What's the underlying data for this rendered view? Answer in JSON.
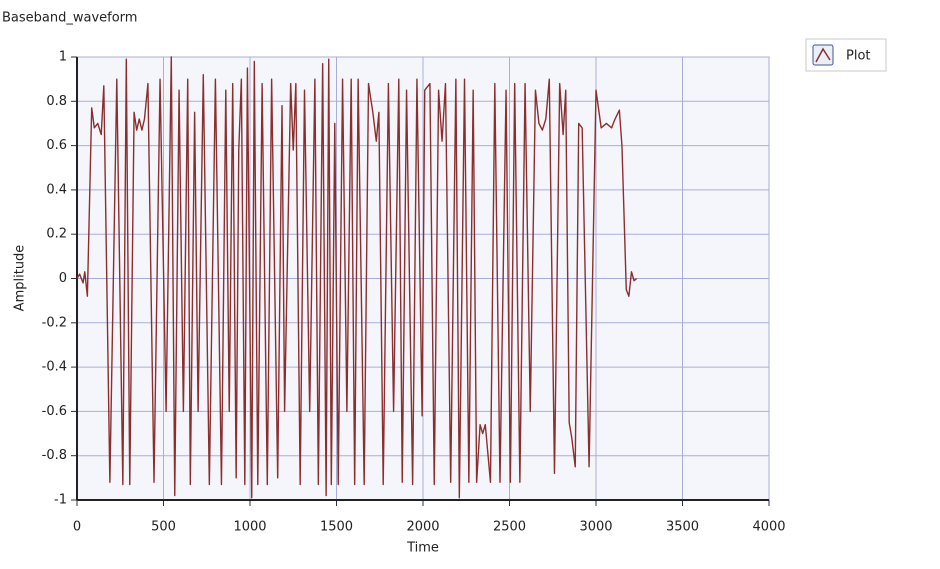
{
  "chart_data": {
    "type": "line",
    "title": "Baseband_waveform",
    "x_label": "Time",
    "y_label": "Amplitude",
    "xlim": [
      0,
      4000
    ],
    "xticks": [
      0,
      500,
      1000,
      1500,
      2000,
      2500,
      3000,
      3500,
      4000
    ],
    "ylim": [
      -1,
      1
    ],
    "yticks": [
      -1,
      -0.8,
      -0.6,
      -0.4,
      -0.2,
      0,
      0.2,
      0.4,
      0.6,
      0.8,
      1
    ],
    "grid": true,
    "legend": "top-right",
    "series": [
      {
        "name": "Plot",
        "color": "#8b2e2e",
        "x": [
          0,
          15,
          35,
          45,
          60,
          85,
          100,
          120,
          140,
          155,
          190,
          230,
          265,
          285,
          305,
          330,
          345,
          360,
          375,
          390,
          410,
          445,
          480,
          515,
          545,
          565,
          590,
          615,
          640,
          655,
          680,
          700,
          730,
          765,
          800,
          835,
          860,
          880,
          900,
          920,
          935,
          950,
          970,
          985,
          1010,
          1025,
          1045,
          1070,
          1100,
          1125,
          1160,
          1185,
          1200,
          1235,
          1250,
          1265,
          1290,
          1315,
          1345,
          1375,
          1395,
          1420,
          1440,
          1455,
          1470,
          1490,
          1510,
          1535,
          1560,
          1585,
          1605,
          1625,
          1660,
          1685,
          1710,
          1730,
          1745,
          1770,
          1800,
          1830,
          1860,
          1880,
          1905,
          1940,
          1965,
          1995,
          2010,
          2040,
          2065,
          2090,
          2110,
          2130,
          2160,
          2190,
          2210,
          2240,
          2265,
          2290,
          2310,
          2330,
          2345,
          2360,
          2390,
          2415,
          2445,
          2480,
          2505,
          2530,
          2560,
          2590,
          2620,
          2650,
          2670,
          2690,
          2710,
          2730,
          2760,
          2790,
          2810,
          2825,
          2845,
          2860,
          2880,
          2900,
          2920,
          2960,
          3000,
          3030,
          3060,
          3090,
          3110,
          3135,
          3150,
          3175,
          3190,
          3205,
          3220,
          3235
        ],
        "values": [
          0,
          0.02,
          -0.02,
          0.03,
          -0.08,
          0.77,
          0.68,
          0.7,
          0.65,
          0.87,
          -0.92,
          0.9,
          -0.93,
          0.99,
          -0.93,
          0.75,
          0.67,
          0.72,
          0.67,
          0.72,
          0.88,
          -0.92,
          0.9,
          -0.6,
          1.0,
          -0.98,
          0.85,
          -0.6,
          0.9,
          -0.93,
          0.75,
          -0.6,
          0.92,
          -0.93,
          0.9,
          -0.93,
          0.85,
          -0.6,
          0.88,
          -0.9,
          0.58,
          0.9,
          -0.93,
          0.95,
          -0.99,
          0.98,
          -0.93,
          0.88,
          -0.93,
          0.9,
          -0.9,
          0.78,
          -0.6,
          0.88,
          0.58,
          0.88,
          -0.93,
          0.85,
          -0.6,
          0.9,
          -0.93,
          0.97,
          -0.98,
          0.99,
          -0.93,
          0.7,
          -0.93,
          0.9,
          -0.6,
          0.9,
          -0.93,
          0.9,
          -0.93,
          0.88,
          0.75,
          0.62,
          0.75,
          -0.93,
          0.88,
          -0.6,
          0.9,
          -0.92,
          0.85,
          -0.93,
          0.9,
          -0.62,
          0.85,
          0.88,
          -0.93,
          0.85,
          0.62,
          0.88,
          -0.92,
          0.9,
          -0.99,
          0.9,
          -0.92,
          0.85,
          -0.92,
          -0.66,
          -0.7,
          -0.66,
          -0.92,
          0.88,
          -0.92,
          0.85,
          -0.92,
          0.88,
          -0.92,
          0.88,
          -0.6,
          0.85,
          0.7,
          0.67,
          0.72,
          0.9,
          -0.88,
          0.88,
          0.65,
          0.85,
          -0.65,
          -0.72,
          -0.85,
          0.7,
          0.68,
          -0.85,
          0.85,
          0.68,
          0.7,
          0.68,
          0.72,
          0.76,
          0.6,
          -0.05,
          -0.08,
          0.03,
          -0.01,
          0
        ]
      }
    ]
  }
}
